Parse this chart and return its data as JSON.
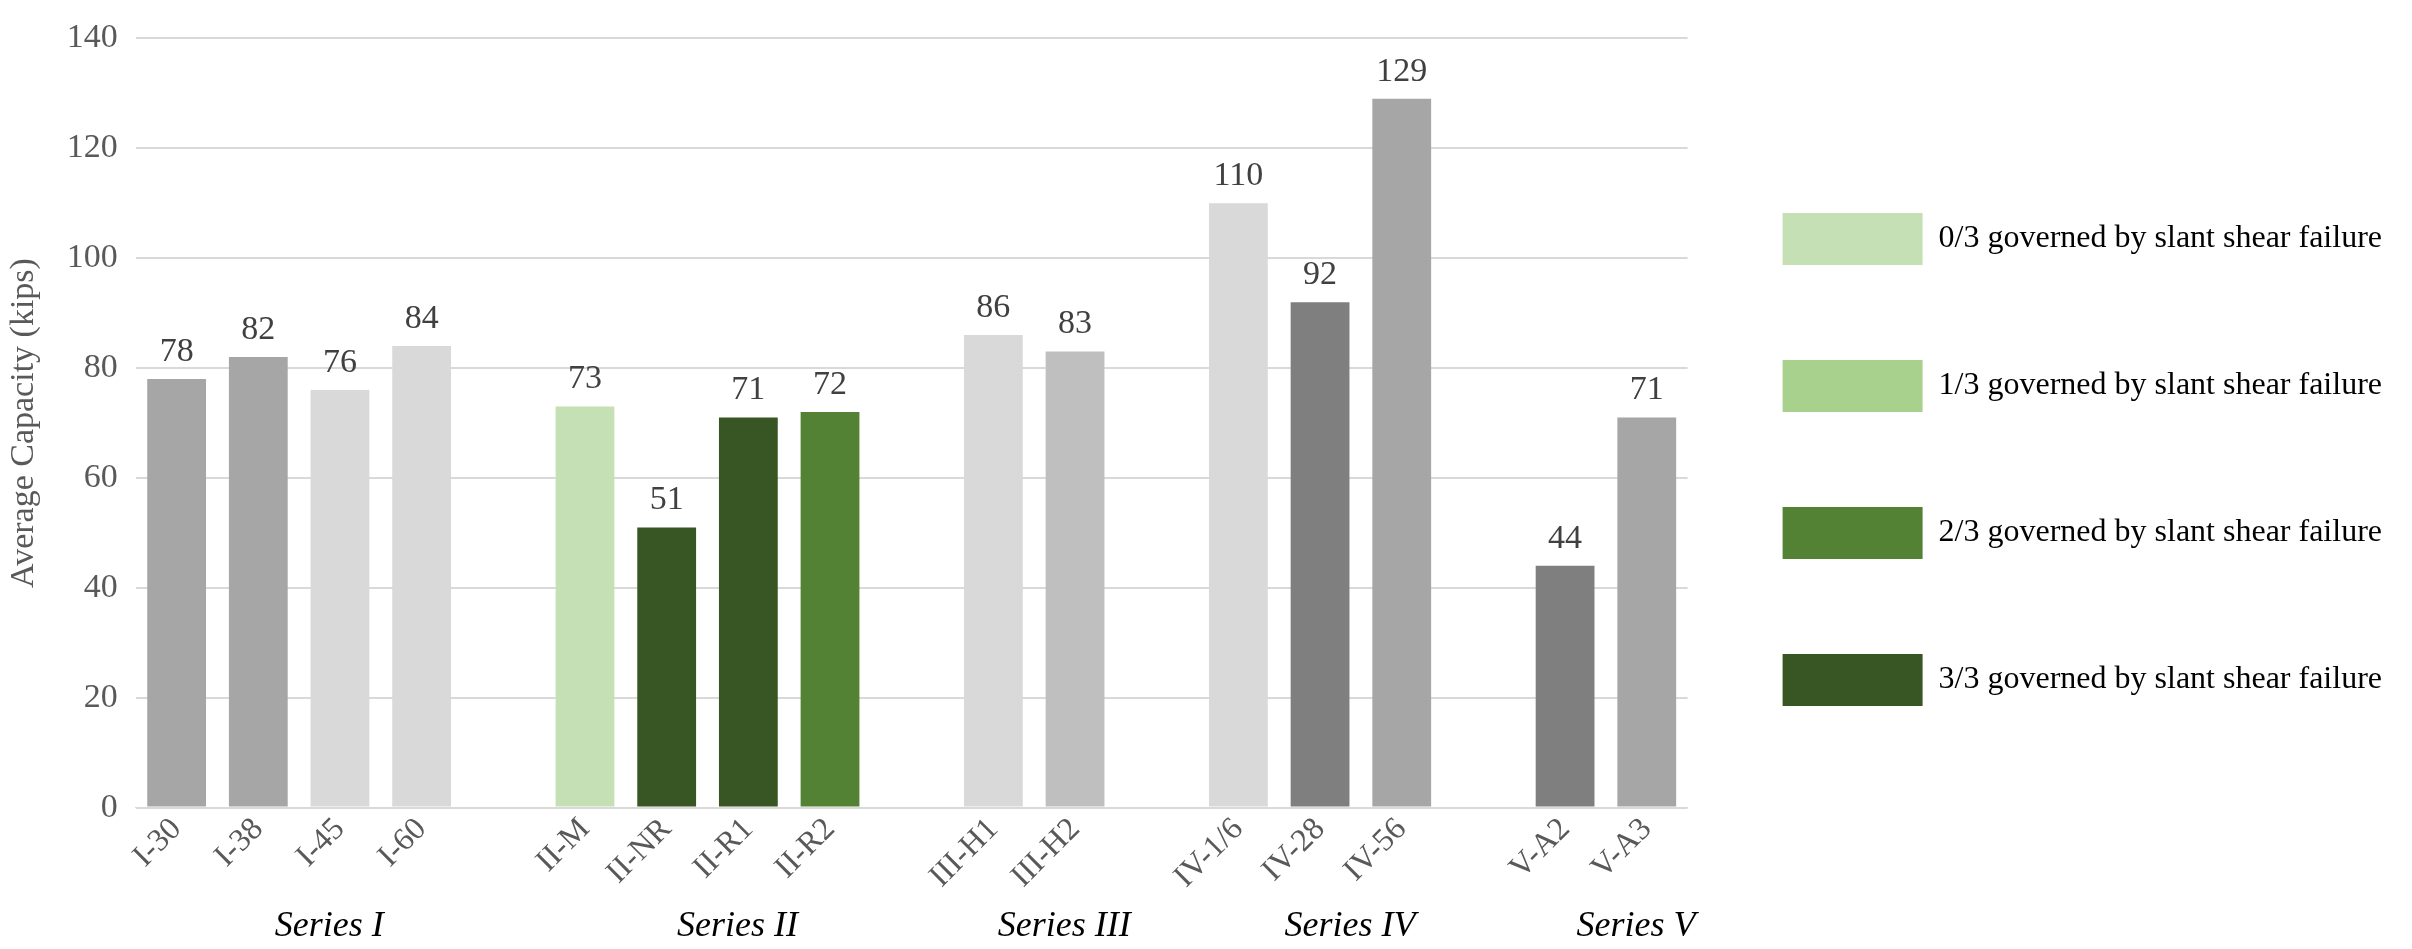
{
  "chart_data": {
    "type": "bar",
    "ylabel": "Average Capacity (kips)",
    "categories": [
      "I-30",
      "I-38",
      "I-45",
      "I-60",
      null,
      "II-M",
      "II-NR",
      "II-R1",
      "II-R2",
      null,
      "III-H1",
      "III-H2",
      null,
      "IV-1/6",
      "IV-28",
      "IV-56",
      null,
      "V-A2",
      "V-A3"
    ],
    "series": [
      {
        "colors": [
          "#a6a6a6",
          "#a6a6a6",
          "#d9d9d9",
          "#d9d9d9",
          null,
          null,
          null,
          null,
          null,
          null,
          "#d9d9d9",
          "#bfbfbf",
          null,
          "#d9d9d9",
          "#7f7f7f",
          "#a6a6a6",
          null,
          "#7f7f7f",
          "#a6a6a6"
        ],
        "values": [
          78,
          82,
          76,
          84,
          null,
          null,
          null,
          null,
          null,
          null,
          86,
          83,
          null,
          110,
          92,
          129,
          null,
          44,
          71
        ]
      },
      {
        "name": "0/3 governed by slant shear failure",
        "color": "#c5e0b4",
        "values": [
          null,
          null,
          null,
          null,
          null,
          73,
          null,
          null,
          null,
          null,
          null,
          null,
          null,
          null,
          null,
          null,
          null,
          null,
          null
        ]
      },
      {
        "name": "1/3 governed by slant shear failure",
        "color": "#a9d18e",
        "values": [
          null,
          null,
          null,
          null,
          null,
          null,
          null,
          null,
          null,
          null,
          null,
          null,
          null,
          null,
          null,
          null,
          null,
          null,
          null
        ]
      },
      {
        "name": "2/3 governed by slant shear failure",
        "color": "#548235",
        "values": [
          null,
          null,
          null,
          null,
          null,
          null,
          null,
          null,
          72,
          null,
          null,
          null,
          null,
          null,
          null,
          null,
          null,
          null,
          null
        ]
      },
      {
        "name": "3/3 governed by slant shear failure",
        "color": "#375623",
        "values": [
          null,
          null,
          null,
          null,
          null,
          null,
          51,
          71,
          null,
          null,
          null,
          null,
          null,
          null,
          null,
          null,
          null,
          null,
          null
        ]
      }
    ],
    "ylim": [
      0,
      140
    ],
    "yticks": [
      0,
      20,
      40,
      60,
      80,
      100,
      120,
      140
    ],
    "grid": "y",
    "legend": "right",
    "data_labels": true,
    "annotations": [
      "Series I",
      "Series II",
      "Series III",
      "Series IV",
      "Series V"
    ]
  }
}
